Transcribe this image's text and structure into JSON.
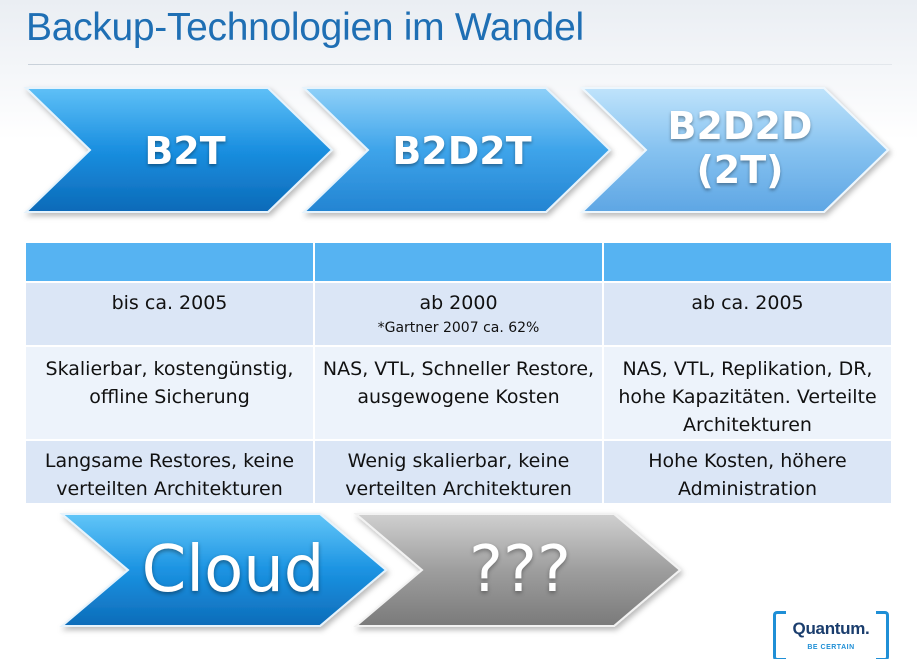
{
  "slide": {
    "title": "Backup-Technologien im Wandel"
  },
  "chevrons": [
    {
      "label": "B2T"
    },
    {
      "label": "B2D2T"
    },
    {
      "label_line1": "B2D2D",
      "label_line2": "(2T)"
    }
  ],
  "table": {
    "rows": [
      {
        "cells": [
          {
            "text": "bis ca. 2005"
          },
          {
            "text": "ab 2000",
            "note": "*Gartner 2007 ca. 62%"
          },
          {
            "text": "ab ca. 2005"
          }
        ]
      },
      {
        "cells": [
          {
            "line1": "Skalierbar, kostengünstig,",
            "line2": "offline Sicherung"
          },
          {
            "line1": "NAS, VTL, Schneller Restore,",
            "line2": "ausgewogene Kosten"
          },
          {
            "line1": "NAS, VTL, Replikation, DR,",
            "line2": "hohe Kapazitäten. Verteilte",
            "line3": "Architekturen"
          }
        ]
      },
      {
        "cells": [
          {
            "line1": "Langsame Restores, keine",
            "line2": "verteilten Architekturen"
          },
          {
            "line1": "Wenig skalierbar, keine",
            "line2": "verteilten Architekturen"
          },
          {
            "line1": "Hohe Kosten, höhere",
            "line2": "Administration"
          }
        ]
      }
    ]
  },
  "future": [
    {
      "label": "Cloud"
    },
    {
      "label": "???"
    }
  ],
  "logo": {
    "word": "Quantum.",
    "tagline": "BE CERTAIN"
  },
  "colors": {
    "title": "#1f6fb4",
    "chevron_blue_1": "#1b8de0",
    "chevron_blue_2": "#3da0e8",
    "chevron_blue_3": "#7ab9ee",
    "chevron_gray": "#9a9a9a",
    "table_header": "#56b3f2",
    "table_row": "#dbe6f6"
  }
}
